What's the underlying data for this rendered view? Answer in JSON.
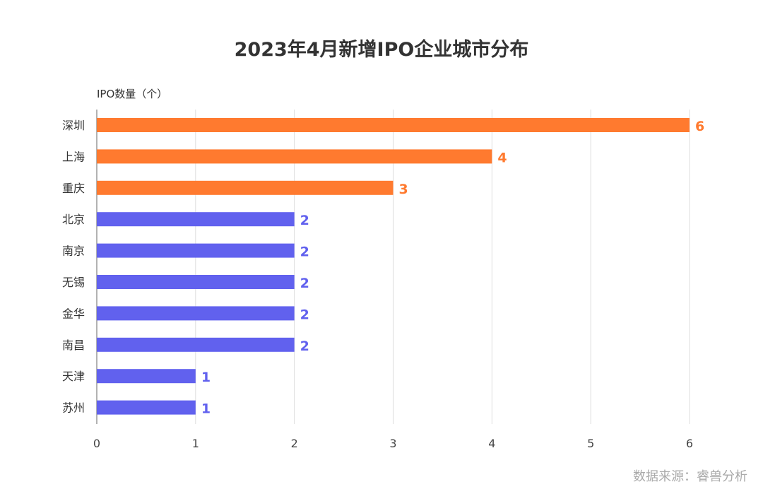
{
  "chart_data": {
    "type": "bar",
    "orientation": "horizontal",
    "title": "2023年4月新增IPO企业城市分布",
    "unit_label": "IPO数量（个）",
    "categories": [
      "深圳",
      "上海",
      "重庆",
      "北京",
      "南京",
      "无锡",
      "金华",
      "南昌",
      "天津",
      "苏州"
    ],
    "values": [
      6,
      4,
      3,
      2,
      2,
      2,
      2,
      2,
      1,
      1
    ],
    "bar_colors": [
      "#FF7A2F",
      "#FF7A2F",
      "#FF7A2F",
      "#6161EE",
      "#6161EE",
      "#6161EE",
      "#6161EE",
      "#6161EE",
      "#6161EE",
      "#6161EE"
    ],
    "xlim": [
      0,
      6
    ],
    "xticks": [
      0,
      1,
      2,
      3,
      4,
      5,
      6
    ],
    "grid": true,
    "data_labels": true
  },
  "source": "数据来源：睿兽分析"
}
